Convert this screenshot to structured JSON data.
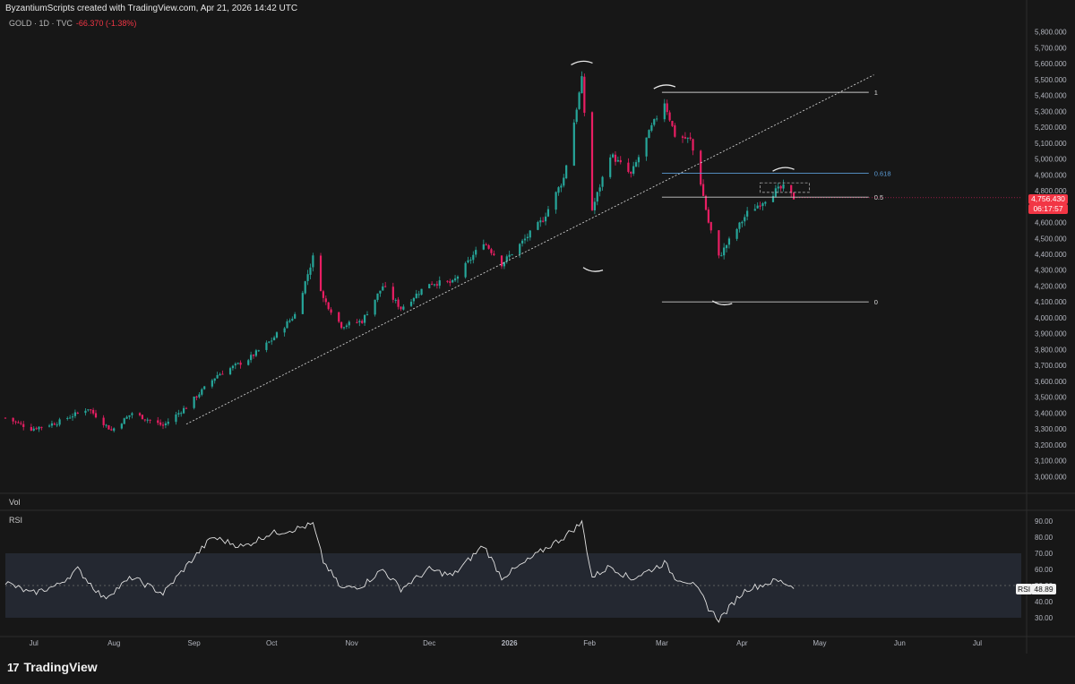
{
  "header": {
    "credit": "ByzantiumScripts created with TradingView.com, Apr 21, 2026 14:42 UTC",
    "symbol": "GOLD · 1D · TVC",
    "change": "-66.370 (-1.38%)"
  },
  "panes": {
    "volume_label": "Vol",
    "rsi_label": "RSI"
  },
  "current": {
    "price": "4,756.430",
    "countdown": "06:17:57",
    "rsi_name": "RSI",
    "rsi_value": "48.89"
  },
  "brand": {
    "name": "TradingView",
    "mark": "17"
  },
  "colors": {
    "up": "#26a69a",
    "down": "#e91e63",
    "bg": "#171717",
    "rsi_band": "#2a2f3b",
    "fib_0618": "#5b9bd5"
  },
  "chart_data": {
    "type": "candlestick",
    "price_axis": {
      "ylim": [
        2900,
        5900
      ],
      "ticks": [
        "3,000.000",
        "3,100.000",
        "3,200.000",
        "3,300.000",
        "3,400.000",
        "3,500.000",
        "3,600.000",
        "3,700.000",
        "3,800.000",
        "3,900.000",
        "4,000.000",
        "4,100.000",
        "4,200.000",
        "4,300.000",
        "4,400.000",
        "4,500.000",
        "4,600.000",
        "4,700.000",
        "4,800.000",
        "4,900.000",
        "5,000.000",
        "5,100.000",
        "5,200.000",
        "5,300.000",
        "5,400.000",
        "5,500.000",
        "5,600.000",
        "5,700.000",
        "5,800.000"
      ]
    },
    "time_axis": {
      "labels": [
        {
          "label": "Jul",
          "date": "2025-07-01"
        },
        {
          "label": "Aug",
          "date": "2025-08-01"
        },
        {
          "label": "Sep",
          "date": "2025-09-01"
        },
        {
          "label": "Oct",
          "date": "2025-10-01"
        },
        {
          "label": "Nov",
          "date": "2025-11-01"
        },
        {
          "label": "Dec",
          "date": "2025-12-01"
        },
        {
          "label": "2026",
          "date": "2026-01-01"
        },
        {
          "label": "Feb",
          "date": "2026-02-01"
        },
        {
          "label": "Mar",
          "date": "2026-03-01"
        },
        {
          "label": "Apr",
          "date": "2026-04-01"
        },
        {
          "label": "May",
          "date": "2026-05-01"
        },
        {
          "label": "Jun",
          "date": "2026-06-01"
        },
        {
          "label": "Jul",
          "date": "2026-07-01"
        }
      ]
    },
    "close_path": [
      {
        "date": "2025-06-20",
        "close": 3370
      },
      {
        "date": "2025-06-30",
        "close": 3300
      },
      {
        "date": "2025-07-10",
        "close": 3340
      },
      {
        "date": "2025-07-22",
        "close": 3430
      },
      {
        "date": "2025-07-31",
        "close": 3290
      },
      {
        "date": "2025-08-08",
        "close": 3400
      },
      {
        "date": "2025-08-20",
        "close": 3320
      },
      {
        "date": "2025-08-29",
        "close": 3440
      },
      {
        "date": "2025-09-10",
        "close": 3640
      },
      {
        "date": "2025-09-22",
        "close": 3740
      },
      {
        "date": "2025-10-01",
        "close": 3860
      },
      {
        "date": "2025-10-10",
        "close": 4020
      },
      {
        "date": "2025-10-17",
        "close": 4380
      },
      {
        "date": "2025-10-21",
        "close": 4120
      },
      {
        "date": "2025-10-28",
        "close": 3950
      },
      {
        "date": "2025-11-05",
        "close": 3980
      },
      {
        "date": "2025-11-13",
        "close": 4200
      },
      {
        "date": "2025-11-20",
        "close": 4060
      },
      {
        "date": "2025-12-01",
        "close": 4220
      },
      {
        "date": "2025-12-10",
        "close": 4220
      },
      {
        "date": "2025-12-22",
        "close": 4480
      },
      {
        "date": "2025-12-29",
        "close": 4340
      },
      {
        "date": "2026-01-05",
        "close": 4460
      },
      {
        "date": "2026-01-14",
        "close": 4620
      },
      {
        "date": "2026-01-22",
        "close": 4880
      },
      {
        "date": "2026-01-29",
        "close": 5500
      },
      {
        "date": "2026-02-02",
        "close": 4680
      },
      {
        "date": "2026-02-09",
        "close": 5030
      },
      {
        "date": "2026-02-17",
        "close": 4900
      },
      {
        "date": "2026-02-25",
        "close": 5200
      },
      {
        "date": "2026-03-02",
        "close": 5360
      },
      {
        "date": "2026-03-06",
        "close": 5150
      },
      {
        "date": "2026-03-12",
        "close": 5120
      },
      {
        "date": "2026-03-16",
        "close": 4850
      },
      {
        "date": "2026-03-19",
        "close": 4600
      },
      {
        "date": "2026-03-23",
        "close": 4380
      },
      {
        "date": "2026-03-26",
        "close": 4460
      },
      {
        "date": "2026-03-30",
        "close": 4560
      },
      {
        "date": "2026-04-03",
        "close": 4660
      },
      {
        "date": "2026-04-08",
        "close": 4720
      },
      {
        "date": "2026-04-14",
        "close": 4800
      },
      {
        "date": "2026-04-17",
        "close": 4820
      },
      {
        "date": "2026-04-21",
        "close": 4756
      }
    ],
    "trendline": {
      "from": {
        "date": "2025-08-29",
        "price": 3330
      },
      "to": {
        "date": "2026-05-22",
        "price": 5530
      },
      "style": "dotted"
    },
    "fib_retracement": {
      "from_date": "2026-03-01",
      "to_date": "2026-05-20",
      "levels": [
        {
          "label": "1",
          "price": 5420
        },
        {
          "label": "0.618",
          "price": 4910
        },
        {
          "label": "0.5",
          "price": 4760
        },
        {
          "label": "0",
          "price": 4100
        }
      ]
    },
    "range_box": {
      "from_date": "2026-04-08",
      "to_date": "2026-04-27",
      "top": 4850,
      "bottom": 4790,
      "style": "dashed"
    },
    "rsi": {
      "ylim": [
        20,
        95
      ],
      "ticks": [
        "30.00",
        "40.00",
        "50.00",
        "60.00",
        "70.00",
        "80.00",
        "90.00"
      ],
      "band": [
        30,
        70
      ],
      "midline": 50,
      "path": [
        {
          "date": "2025-06-20",
          "value": 52
        },
        {
          "date": "2025-06-30",
          "value": 45
        },
        {
          "date": "2025-07-10",
          "value": 50
        },
        {
          "date": "2025-07-18",
          "value": 60
        },
        {
          "date": "2025-07-28",
          "value": 42
        },
        {
          "date": "2025-08-08",
          "value": 55
        },
        {
          "date": "2025-08-20",
          "value": 45
        },
        {
          "date": "2025-08-29",
          "value": 62
        },
        {
          "date": "2025-09-08",
          "value": 80
        },
        {
          "date": "2025-09-20",
          "value": 74
        },
        {
          "date": "2025-09-30",
          "value": 82
        },
        {
          "date": "2025-10-10",
          "value": 85
        },
        {
          "date": "2025-10-17",
          "value": 88
        },
        {
          "date": "2025-10-21",
          "value": 65
        },
        {
          "date": "2025-10-28",
          "value": 48
        },
        {
          "date": "2025-11-05",
          "value": 50
        },
        {
          "date": "2025-11-13",
          "value": 60
        },
        {
          "date": "2025-11-20",
          "value": 48
        },
        {
          "date": "2025-12-01",
          "value": 60
        },
        {
          "date": "2025-12-10",
          "value": 56
        },
        {
          "date": "2025-12-22",
          "value": 75
        },
        {
          "date": "2025-12-29",
          "value": 55
        },
        {
          "date": "2026-01-05",
          "value": 62
        },
        {
          "date": "2026-01-14",
          "value": 72
        },
        {
          "date": "2026-01-22",
          "value": 80
        },
        {
          "date": "2026-01-29",
          "value": 89
        },
        {
          "date": "2026-02-02",
          "value": 55
        },
        {
          "date": "2026-02-09",
          "value": 62
        },
        {
          "date": "2026-02-17",
          "value": 54
        },
        {
          "date": "2026-02-25",
          "value": 60
        },
        {
          "date": "2026-03-02",
          "value": 64
        },
        {
          "date": "2026-03-06",
          "value": 55
        },
        {
          "date": "2026-03-12",
          "value": 52
        },
        {
          "date": "2026-03-16",
          "value": 45
        },
        {
          "date": "2026-03-19",
          "value": 36
        },
        {
          "date": "2026-03-23",
          "value": 29
        },
        {
          "date": "2026-03-26",
          "value": 34
        },
        {
          "date": "2026-03-30",
          "value": 42
        },
        {
          "date": "2026-04-03",
          "value": 48
        },
        {
          "date": "2026-04-08",
          "value": 50
        },
        {
          "date": "2026-04-14",
          "value": 53
        },
        {
          "date": "2026-04-17",
          "value": 52
        },
        {
          "date": "2026-04-21",
          "value": 48.89
        }
      ]
    }
  }
}
